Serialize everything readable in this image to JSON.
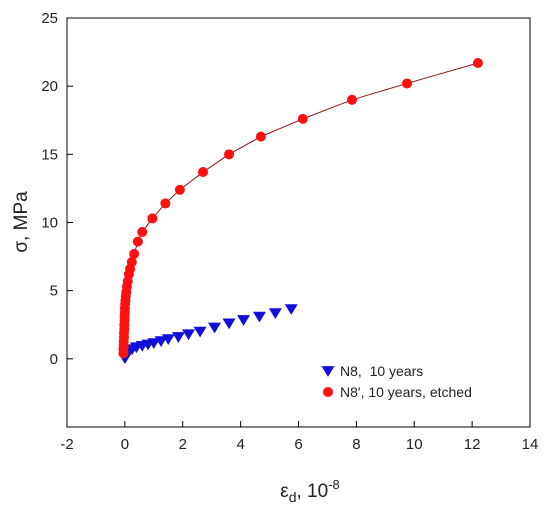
{
  "chart_data": {
    "type": "scatter",
    "title": "",
    "xlabel": {
      "symbol": "ε",
      "subscript": "d",
      "rest": ", 10",
      "superscript": "-8"
    },
    "ylabel": "σ, MPa",
    "xlim": [
      -2,
      14
    ],
    "ylim": [
      -5,
      25
    ],
    "x_ticks": [
      "-2",
      "0",
      "2",
      "4",
      "6",
      "8",
      "10",
      "12",
      "14"
    ],
    "y_ticks": [
      "0",
      "5",
      "10",
      "15",
      "20",
      "25"
    ],
    "grid": false,
    "legend_position": "bottom-right",
    "series": [
      {
        "name": "N8,  10 years",
        "marker": "triangle-down",
        "color": "#1010d8",
        "line": false,
        "points": [
          [
            0.0,
            0.05
          ],
          [
            0.03,
            0.15
          ],
          [
            0.06,
            0.3
          ],
          [
            0.1,
            0.45
          ],
          [
            0.15,
            0.55
          ],
          [
            0.25,
            0.7
          ],
          [
            0.4,
            0.85
          ],
          [
            0.6,
            0.95
          ],
          [
            0.8,
            1.05
          ],
          [
            1.0,
            1.15
          ],
          [
            1.25,
            1.3
          ],
          [
            1.5,
            1.45
          ],
          [
            1.85,
            1.6
          ],
          [
            2.2,
            1.8
          ],
          [
            2.6,
            2.0
          ],
          [
            3.1,
            2.3
          ],
          [
            3.6,
            2.6
          ],
          [
            4.1,
            2.85
          ],
          [
            4.65,
            3.1
          ],
          [
            5.2,
            3.35
          ],
          [
            5.75,
            3.65
          ]
        ]
      },
      {
        "name": "N8', 10 years, etched",
        "marker": "circle",
        "color": "#ff1010",
        "line": true,
        "line_color": "#8b1a1a",
        "points": [
          [
            -0.05,
            0.4
          ],
          [
            -0.05,
            0.7
          ],
          [
            -0.04,
            1.0
          ],
          [
            -0.04,
            1.3
          ],
          [
            -0.03,
            1.6
          ],
          [
            -0.03,
            1.9
          ],
          [
            -0.02,
            2.2
          ],
          [
            -0.02,
            2.5
          ],
          [
            -0.01,
            2.8
          ],
          [
            -0.01,
            3.1
          ],
          [
            0.0,
            3.4
          ],
          [
            0.0,
            3.7
          ],
          [
            0.01,
            4.0
          ],
          [
            0.02,
            4.3
          ],
          [
            0.03,
            4.6
          ],
          [
            0.05,
            4.9
          ],
          [
            0.07,
            5.3
          ],
          [
            0.1,
            5.7
          ],
          [
            0.14,
            6.2
          ],
          [
            0.18,
            6.6
          ],
          [
            0.24,
            7.1
          ],
          [
            0.32,
            7.7
          ],
          [
            0.45,
            8.6
          ],
          [
            0.6,
            9.3
          ],
          [
            0.95,
            10.3
          ],
          [
            1.4,
            11.4
          ],
          [
            1.9,
            12.4
          ],
          [
            2.7,
            13.7
          ],
          [
            3.6,
            15.0
          ],
          [
            4.7,
            16.3
          ],
          [
            6.15,
            17.6
          ],
          [
            7.85,
            19.0
          ],
          [
            9.75,
            20.2
          ],
          [
            12.2,
            21.7
          ]
        ]
      }
    ]
  }
}
